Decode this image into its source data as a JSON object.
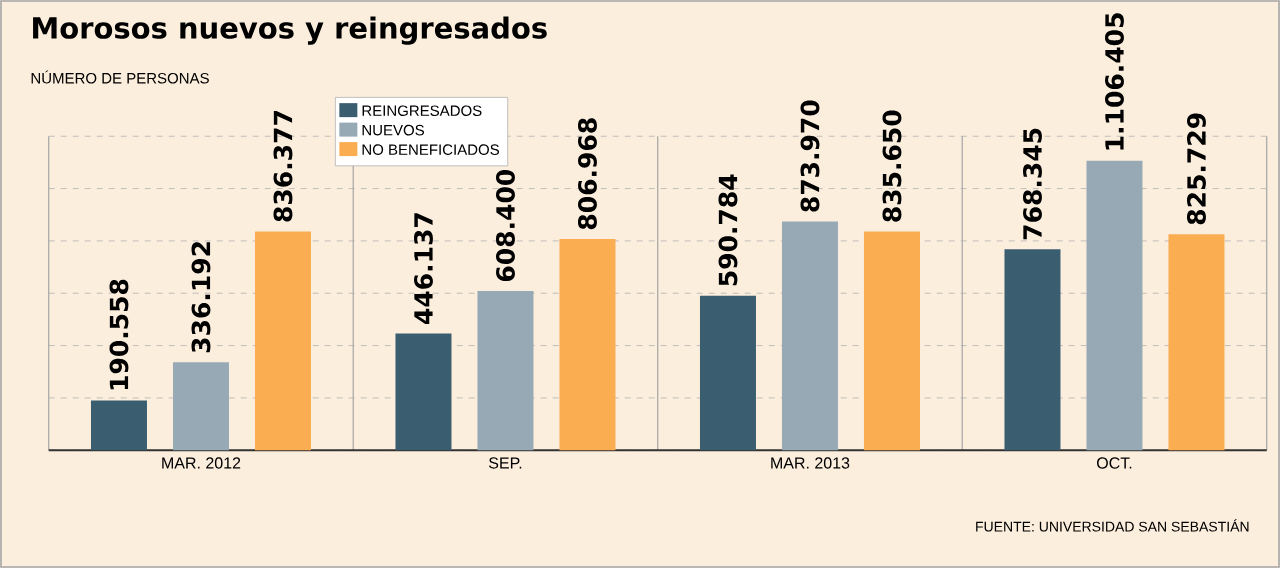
{
  "chart_data": {
    "type": "bar",
    "title": "Morosos nuevos y reingresados",
    "subtitle": "NÚMERO DE PERSONAS",
    "categories": [
      "MAR. 2012",
      "SEP.",
      "MAR. 2013",
      "OCT."
    ],
    "series": [
      {
        "name": "REINGRESADOS",
        "color": "#3a5e70",
        "values": [
          190558,
          446137,
          590784,
          768345
        ],
        "value_labels": [
          "190.558",
          "446.137",
          "590.784",
          "768.345"
        ]
      },
      {
        "name": "NUEVOS",
        "color": "#97a9b5",
        "values": [
          336192,
          608400,
          873970,
          1106405
        ],
        "value_labels": [
          "336.192",
          "608.400",
          "873.970",
          "1.106.405"
        ]
      },
      {
        "name": "NO BENEFICIADOS",
        "color": "#fbad52",
        "values": [
          836377,
          806968,
          835650,
          825729
        ],
        "value_labels": [
          "836.377",
          "806.968",
          "835.650",
          "825.729"
        ]
      }
    ],
    "ylim": [
      0,
      1200000
    ],
    "yticks": [
      {
        "value": 0,
        "label": null
      },
      {
        "value": 200000,
        "label": null
      },
      {
        "value": 400000,
        "label": null
      },
      {
        "value": 600000,
        "label": null
      },
      {
        "value": 800000,
        "label": null
      },
      {
        "value": 1000000,
        "label": null
      },
      {
        "value": 1200000,
        "label": null
      }
    ],
    "tick_labels": "x",
    "grid": "y",
    "legend": "top left",
    "annotations": [
      "FUENTE: UNIVERSIDAD SAN SEBASTIÁN"
    ]
  }
}
